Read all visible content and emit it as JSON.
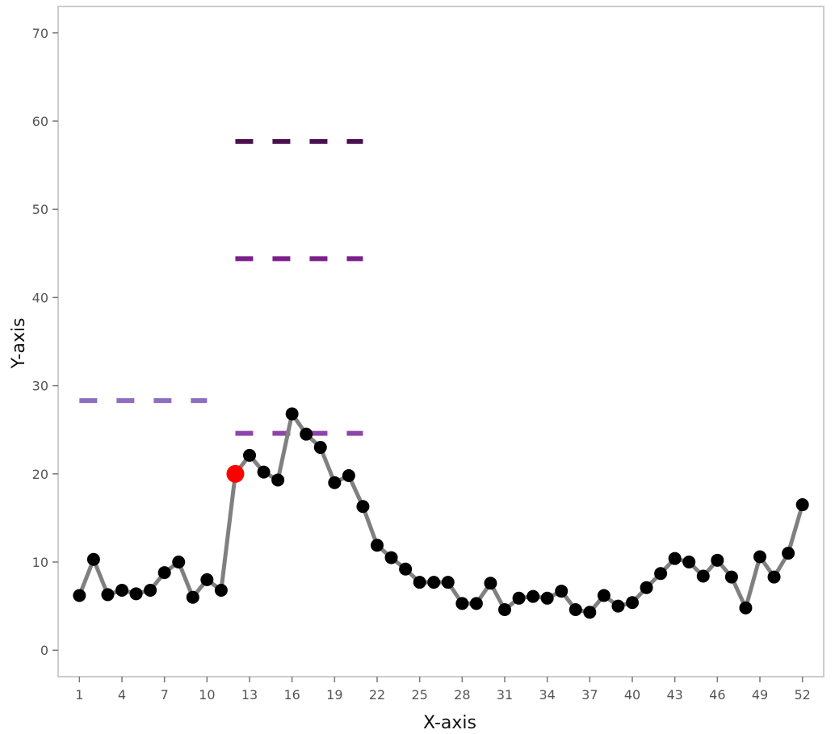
{
  "chart_data": {
    "type": "line",
    "title": "",
    "xlabel": "X-axis",
    "ylabel": "Y-axis",
    "xlim": [
      -0.5,
      53.5
    ],
    "ylim": [
      -3,
      73
    ],
    "x_ticks": [
      1,
      4,
      7,
      10,
      13,
      16,
      19,
      22,
      25,
      28,
      31,
      34,
      37,
      40,
      43,
      46,
      49,
      52
    ],
    "y_ticks": [
      0,
      10,
      20,
      30,
      40,
      50,
      60,
      70
    ],
    "grid": false,
    "series": [
      {
        "x": [
          1,
          2,
          3,
          4,
          5,
          6,
          7,
          8,
          9,
          10,
          11,
          12,
          13,
          14,
          15,
          16,
          17,
          18,
          19,
          20,
          21,
          22,
          23,
          24,
          25,
          26,
          27,
          28,
          29,
          30,
          31,
          32,
          33,
          34,
          35,
          36,
          37,
          38,
          39,
          40,
          41,
          42,
          43,
          44,
          45,
          46,
          47,
          48,
          49,
          50,
          51,
          52
        ],
        "y": [
          6.2,
          10.3,
          6.3,
          6.8,
          6.4,
          6.8,
          8.8,
          10.0,
          6.0,
          8.0,
          6.8,
          20.0,
          22.1,
          20.2,
          19.3,
          26.8,
          24.5,
          23.0,
          19.0,
          19.8,
          16.3,
          11.9,
          10.5,
          9.2,
          7.7,
          7.7,
          7.7,
          5.3,
          5.3,
          7.6,
          4.6,
          5.9,
          6.1,
          5.9,
          6.7,
          4.6,
          4.3,
          6.2,
          5.0,
          5.4,
          7.1,
          8.7,
          10.4,
          10.0,
          8.4,
          10.2,
          8.3,
          4.8,
          10.6,
          8.3,
          11.0,
          16.5
        ],
        "color": "#808080",
        "marker_color": "#000000"
      }
    ],
    "highlight_point": {
      "x": 12,
      "y": 20.0,
      "color": "#ff0000"
    },
    "reference_lines": [
      {
        "x_start": 1,
        "x_end": 10,
        "y": 28.3,
        "color": "#8e6ebf"
      },
      {
        "x_start": 12,
        "x_end": 21,
        "y": 24.6,
        "color": "#8e44ad"
      },
      {
        "x_start": 12,
        "x_end": 21,
        "y": 44.4,
        "color": "#7b1f8a"
      },
      {
        "x_start": 12,
        "x_end": 21,
        "y": 57.7,
        "color": "#4a0f4e"
      }
    ],
    "colors": {
      "frame": "#cccccc",
      "tick": "#777777"
    }
  }
}
